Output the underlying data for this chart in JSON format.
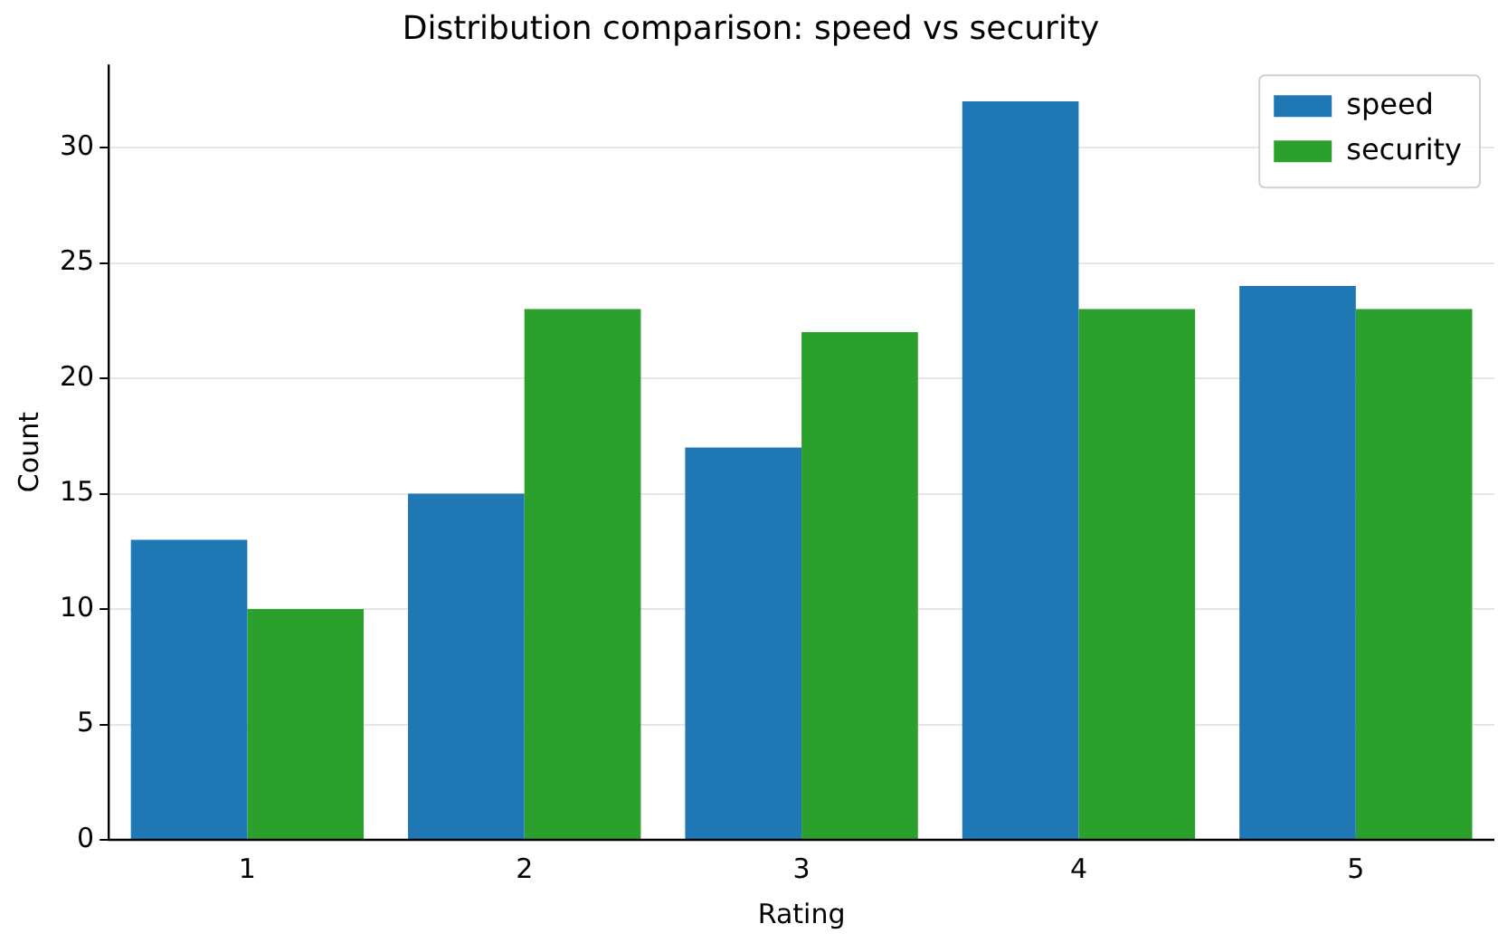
{
  "chart_data": {
    "type": "bar",
    "title": "Distribution comparison: speed vs security",
    "xlabel": "Rating",
    "ylabel": "Count",
    "categories": [
      "1",
      "2",
      "3",
      "4",
      "5"
    ],
    "series": [
      {
        "name": "speed",
        "color": "#1f77b4",
        "values": [
          13,
          15,
          17,
          32,
          24
        ]
      },
      {
        "name": "security",
        "color": "#2ca02c",
        "values": [
          10,
          23,
          22,
          23,
          23
        ]
      }
    ],
    "ylim": [
      0,
      33.6
    ],
    "yticks": [
      0,
      5,
      10,
      15,
      20,
      25,
      30
    ],
    "grid": "y",
    "legend": "top right"
  }
}
